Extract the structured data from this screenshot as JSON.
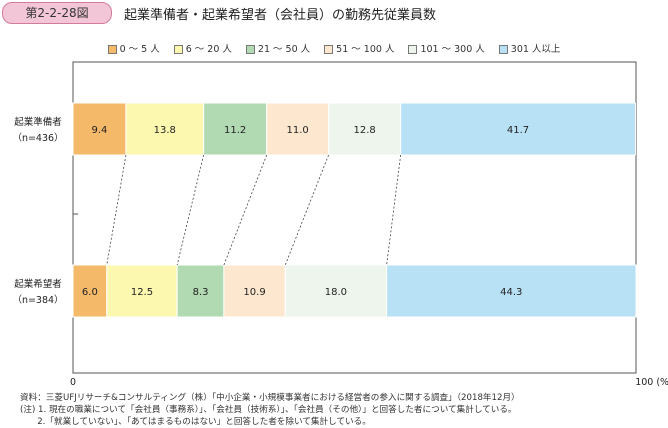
{
  "header": {
    "figure_no": "第2-2-28図",
    "title": "起業準備者・起業希望者（会社員）の勤務先従業員数"
  },
  "chart_data": {
    "type": "bar",
    "stacked": true,
    "orientation": "horizontal",
    "title": "起業準備者・起業希望者（会社員）の勤務先従業員数",
    "categories": [
      "起業準備者",
      "起業希望者"
    ],
    "category_n": [
      "（n=436）",
      "（n=384）"
    ],
    "series": [
      {
        "name": "0 ～ 5 人",
        "color": "#f5b96a",
        "values": [
          9.4,
          6.0
        ]
      },
      {
        "name": "6 ～ 20 人",
        "color": "#fdf8b0",
        "values": [
          13.8,
          12.5
        ]
      },
      {
        "name": "21 ～ 50 人",
        "color": "#b2dab2",
        "values": [
          11.2,
          8.3
        ]
      },
      {
        "name": "51 ～ 100 人",
        "color": "#fde8cf",
        "values": [
          11.0,
          10.9
        ]
      },
      {
        "name": "101 ～ 300 人",
        "color": "#eef5ec",
        "values": [
          12.8,
          18.0
        ]
      },
      {
        "name": "301 人以上",
        "color": "#b8e1f6",
        "values": [
          41.7,
          44.3
        ]
      }
    ],
    "xlim": [
      0,
      100
    ],
    "xtick_labels": [
      "0",
      "100 (%)"
    ],
    "legend": "top"
  },
  "notes": [
    "資料：三菱UFJリサーチ&コンサルティング（株）「中小企業・小規模事業者における経営者の参入に関する調査」（2018年12月）",
    "(注) 1. 現在の職業について「会社員（事務系）」、「会社員（技術系）」、「会社員（その他）」と回答した者について集計している。",
    "　　2.「就業していない」、「あてはまるものはない」と回答した者を除いて集計している。"
  ]
}
